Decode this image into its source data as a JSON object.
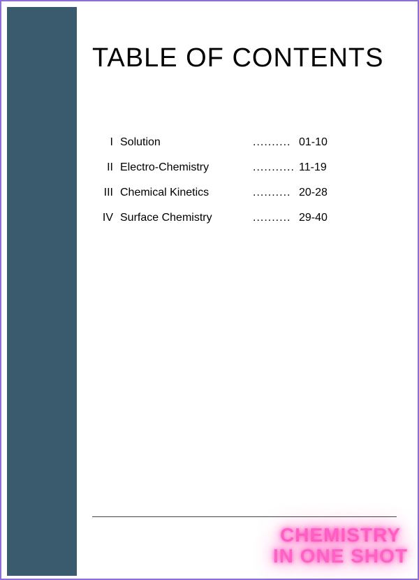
{
  "page": {
    "title": "TABLE OF CONTENTS",
    "border_color": "#8b6fd4",
    "sidebar_color": "#3a5a6e",
    "background_color": "#ffffff"
  },
  "toc": {
    "rows": [
      {
        "roman": "I",
        "chapter": "Solution",
        "dots": "..........",
        "pages": "01-10"
      },
      {
        "roman": "II",
        "chapter": "Electro-Chemistry",
        "dots": "...........",
        "pages": "11-19"
      },
      {
        "roman": "III",
        "chapter": "Chemical Kinetics",
        "dots": "..........",
        "pages": "20-28"
      },
      {
        "roman": "IV",
        "chapter": "Surface Chemistry",
        "dots": "..........",
        "pages": "29-40"
      }
    ],
    "font_size": 16,
    "row_spacing": 18,
    "text_color": "#000000"
  },
  "stamp": {
    "line1": "CHEMISTRY",
    "line2": "IN ONE SHOT",
    "color": "#ff62c5",
    "glow_color": "rgba(255,80,190,0.8)",
    "font_size": 28
  }
}
